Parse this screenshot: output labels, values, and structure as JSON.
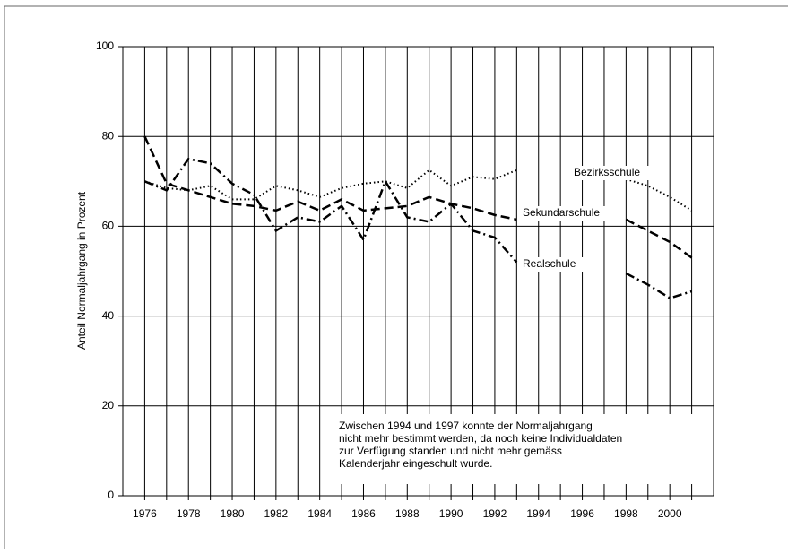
{
  "chart_data": {
    "type": "line",
    "ylabel": "Anteil Normaljahrgang in Prozent",
    "x": [
      1976,
      1977,
      1978,
      1979,
      1980,
      1981,
      1982,
      1983,
      1984,
      1985,
      1986,
      1987,
      1988,
      1989,
      1990,
      1991,
      1992,
      1993,
      1994,
      1995,
      1996,
      1997,
      1998,
      1999,
      2000,
      2001
    ],
    "series": [
      {
        "name": "Bezirksschule",
        "color": "#000000",
        "style": "dotted",
        "values": [
          70,
          68.5,
          68,
          69,
          66,
          66,
          69,
          68,
          66.5,
          68.5,
          69.5,
          70,
          68.5,
          72.5,
          69,
          71,
          70.5,
          72.5,
          null,
          null,
          null,
          null,
          70.5,
          69,
          66.5,
          63.5
        ]
      },
      {
        "name": "Sekundarschule",
        "color": "#000000",
        "style": "dashed",
        "values": [
          80,
          69.5,
          68,
          66.5,
          65,
          64.5,
          63.5,
          65.5,
          63.5,
          66,
          63.5,
          64,
          64.5,
          66.5,
          65,
          64,
          62.5,
          61.5,
          null,
          null,
          null,
          null,
          61.5,
          59,
          56.5,
          53
        ]
      },
      {
        "name": "Realschule",
        "color": "#000000",
        "style": "dashdot",
        "values": [
          70,
          68,
          75,
          74,
          69.5,
          67,
          59,
          62,
          61,
          64.5,
          57,
          70,
          62,
          61,
          65,
          59,
          57.5,
          52,
          null,
          null,
          null,
          null,
          49.5,
          47,
          44,
          45.5
        ]
      }
    ],
    "xlim": [
      1975,
      2002
    ],
    "xticks": [
      1976,
      1978,
      1980,
      1982,
      1984,
      1986,
      1988,
      1990,
      1992,
      1994,
      1996,
      1998,
      2000
    ],
    "ylim": [
      0,
      100
    ],
    "yticks": [
      0,
      20,
      40,
      60,
      80,
      100
    ],
    "grid": true,
    "annotation": [
      "Zwischen 1994 und 1997 konnte der Normaljahrgang",
      "nicht mehr bestimmt werden, da noch keine Individualdaten",
      "zur Verfügung standen und nicht mehr gemäss",
      "Kalenderjahr eingeschult wurde."
    ]
  }
}
